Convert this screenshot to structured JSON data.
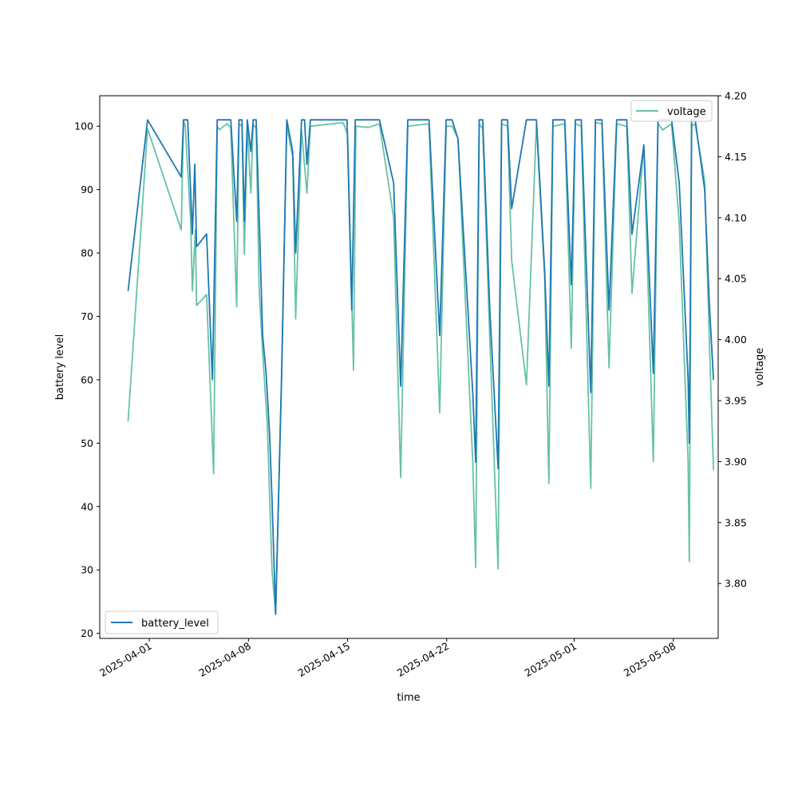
{
  "chart_data": {
    "type": "line",
    "title": "",
    "xlabel": "time",
    "ylabel": "battery level",
    "y2label": "voltage",
    "xlim": [
      "2025-03-28T12:00",
      "2025-05-11T04:00"
    ],
    "ylim": [
      19.2,
      104.8
    ],
    "y2lim": [
      3.755,
      4.2
    ],
    "x_tick_labels": [
      "2025-04-01",
      "2025-04-08",
      "2025-04-15",
      "2025-04-22",
      "2025-05-01",
      "2025-05-08"
    ],
    "y_tick_labels": [
      "20",
      "30",
      "40",
      "50",
      "60",
      "70",
      "80",
      "90",
      "100"
    ],
    "y2_tick_labels": [
      "3.80",
      "3.85",
      "3.90",
      "3.95",
      "4.00",
      "4.05",
      "4.10",
      "4.15",
      "4.20"
    ],
    "grid": false,
    "series": [
      {
        "name": "battery_level",
        "axis": "left",
        "color": "#1f77b4",
        "legend_position": "lower-left",
        "points": [
          [
            "2025-03-30T12:00",
            74
          ],
          [
            "2025-03-31T21:00",
            101
          ],
          [
            "2025-04-03T06:00",
            92
          ],
          [
            "2025-04-03T10:00",
            101
          ],
          [
            "2025-04-03T17:00",
            101
          ],
          [
            "2025-04-04T01:00",
            83
          ],
          [
            "2025-04-04T05:00",
            94
          ],
          [
            "2025-04-04T08:00",
            81
          ],
          [
            "2025-04-05T01:00",
            83
          ],
          [
            "2025-04-05T11:00",
            60
          ],
          [
            "2025-04-05T19:00",
            101
          ],
          [
            "2025-04-06T18:00",
            101
          ],
          [
            "2025-04-07T04:00",
            85
          ],
          [
            "2025-04-07T08:00",
            101
          ],
          [
            "2025-04-07T13:00",
            101
          ],
          [
            "2025-04-07T17:00",
            85
          ],
          [
            "2025-04-07T22:00",
            101
          ],
          [
            "2025-04-08T04:00",
            96
          ],
          [
            "2025-04-08T08:00",
            101
          ],
          [
            "2025-04-08T13:00",
            101
          ],
          [
            "2025-04-08T18:00",
            86
          ],
          [
            "2025-04-09T00:00",
            67
          ],
          [
            "2025-04-09T06:00",
            61
          ],
          [
            "2025-04-09T12:00",
            51
          ],
          [
            "2025-04-09T16:00",
            41
          ],
          [
            "2025-04-09T22:00",
            23
          ],
          [
            "2025-04-10T08:00",
            60
          ],
          [
            "2025-04-10T17:00",
            101
          ],
          [
            "2025-04-11T03:00",
            96
          ],
          [
            "2025-04-11T08:00",
            80
          ],
          [
            "2025-04-11T18:00",
            101
          ],
          [
            "2025-04-11T23:00",
            101
          ],
          [
            "2025-04-12T03:00",
            94
          ],
          [
            "2025-04-12T09:00",
            101
          ],
          [
            "2025-04-14T19:00",
            101
          ],
          [
            "2025-04-14T23:00",
            101
          ],
          [
            "2025-04-15T07:00",
            71
          ],
          [
            "2025-04-15T13:00",
            101
          ],
          [
            "2025-04-17T06:00",
            101
          ],
          [
            "2025-04-18T06:00",
            91
          ],
          [
            "2025-04-18T18:00",
            59
          ],
          [
            "2025-04-19T06:00",
            101
          ],
          [
            "2025-04-20T18:00",
            101
          ],
          [
            "2025-04-21T12:00",
            67
          ],
          [
            "2025-04-21T23:00",
            101
          ],
          [
            "2025-04-22T09:00",
            101
          ],
          [
            "2025-04-22T19:00",
            98
          ],
          [
            "2025-04-23T20:00",
            58
          ],
          [
            "2025-04-24T01:00",
            47
          ],
          [
            "2025-04-24T07:00",
            101
          ],
          [
            "2025-04-24T13:00",
            101
          ],
          [
            "2025-04-25T01:00",
            71
          ],
          [
            "2025-04-25T15:00",
            46
          ],
          [
            "2025-04-25T21:00",
            101
          ],
          [
            "2025-04-26T07:00",
            101
          ],
          [
            "2025-04-26T14:00",
            87
          ],
          [
            "2025-04-27T15:00",
            101
          ],
          [
            "2025-04-28T08:00",
            101
          ],
          [
            "2025-04-28T22:00",
            77
          ],
          [
            "2025-04-29T05:00",
            59
          ],
          [
            "2025-04-29T12:00",
            101
          ],
          [
            "2025-04-30T08:00",
            101
          ],
          [
            "2025-04-30T19:00",
            75
          ],
          [
            "2025-05-01T02:00",
            101
          ],
          [
            "2025-05-01T12:00",
            101
          ],
          [
            "2025-05-02T04:00",
            58
          ],
          [
            "2025-05-02T12:00",
            101
          ],
          [
            "2025-05-02T23:00",
            101
          ],
          [
            "2025-05-03T11:00",
            71
          ],
          [
            "2025-05-04T00:00",
            101
          ],
          [
            "2025-05-04T17:00",
            101
          ],
          [
            "2025-05-05T02:00",
            83
          ],
          [
            "2025-05-05T22:00",
            97
          ],
          [
            "2025-05-06T14:00",
            61
          ],
          [
            "2025-05-06T22:00",
            101
          ],
          [
            "2025-05-07T21:00",
            101
          ],
          [
            "2025-05-08T10:00",
            91
          ],
          [
            "2025-05-09T01:00",
            60
          ],
          [
            "2025-05-09T03:00",
            50
          ],
          [
            "2025-05-09T07:00",
            101
          ],
          [
            "2025-05-09T13:00",
            101
          ],
          [
            "2025-05-10T05:00",
            90
          ],
          [
            "2025-05-10T13:00",
            72
          ],
          [
            "2025-05-10T20:00",
            60
          ]
        ]
      },
      {
        "name": "voltage",
        "axis": "right",
        "color": "#66c2a5",
        "legend_position": "upper-right",
        "points": [
          [
            "2025-03-30T12:00",
            3.933
          ],
          [
            "2025-03-31T21:00",
            4.173
          ],
          [
            "2025-04-03T06:00",
            4.09
          ],
          [
            "2025-04-03T10:00",
            4.18
          ],
          [
            "2025-04-03T13:00",
            4.175
          ],
          [
            "2025-04-03T22:00",
            4.097
          ],
          [
            "2025-04-04T01:00",
            4.04
          ],
          [
            "2025-04-04T06:00",
            4.09
          ],
          [
            "2025-04-04T08:00",
            4.028
          ],
          [
            "2025-04-05T01:00",
            4.037
          ],
          [
            "2025-04-05T13:00",
            3.89
          ],
          [
            "2025-04-05T19:00",
            4.175
          ],
          [
            "2025-04-05T23:00",
            4.172
          ],
          [
            "2025-04-06T06:00",
            4.175
          ],
          [
            "2025-04-06T12:00",
            4.177
          ],
          [
            "2025-04-06T18:00",
            4.174
          ],
          [
            "2025-04-07T04:00",
            4.027
          ],
          [
            "2025-04-07T08:00",
            4.177
          ],
          [
            "2025-04-07T13:00",
            4.175
          ],
          [
            "2025-04-07T17:00",
            4.07
          ],
          [
            "2025-04-07T22:00",
            4.175
          ],
          [
            "2025-04-08T04:00",
            4.12
          ],
          [
            "2025-04-08T08:00",
            4.177
          ],
          [
            "2025-04-08T13:00",
            4.173
          ],
          [
            "2025-04-08T18:00",
            4.042
          ],
          [
            "2025-04-09T00:00",
            3.99
          ],
          [
            "2025-04-09T08:00",
            3.93
          ],
          [
            "2025-04-09T16:00",
            3.81
          ],
          [
            "2025-04-09T22:00",
            3.775
          ],
          [
            "2025-04-10T08:00",
            3.97
          ],
          [
            "2025-04-10T17:00",
            4.175
          ],
          [
            "2025-04-11T03:00",
            4.15
          ],
          [
            "2025-04-11T08:00",
            4.017
          ],
          [
            "2025-04-11T18:00",
            4.172
          ],
          [
            "2025-04-12T03:00",
            4.12
          ],
          [
            "2025-04-12T09:00",
            4.175
          ],
          [
            "2025-04-14T16:00",
            4.178
          ],
          [
            "2025-04-14T19:00",
            4.175
          ],
          [
            "2025-04-15T00:00",
            4.168
          ],
          [
            "2025-04-15T10:00",
            3.975
          ],
          [
            "2025-04-15T14:00",
            4.175
          ],
          [
            "2025-04-16T12:00",
            4.174
          ],
          [
            "2025-04-17T06:00",
            4.177
          ],
          [
            "2025-04-18T06:00",
            4.1
          ],
          [
            "2025-04-18T18:00",
            3.887
          ],
          [
            "2025-04-19T06:00",
            4.175
          ],
          [
            "2025-04-20T18:00",
            4.177
          ],
          [
            "2025-04-21T12:00",
            3.94
          ],
          [
            "2025-04-21T23:00",
            4.175
          ],
          [
            "2025-04-22T09:00",
            4.175
          ],
          [
            "2025-04-22T19:00",
            4.165
          ],
          [
            "2025-04-23T20:00",
            3.9
          ],
          [
            "2025-04-24T01:00",
            3.813
          ],
          [
            "2025-04-24T07:00",
            4.177
          ],
          [
            "2025-04-24T13:00",
            4.173
          ],
          [
            "2025-04-25T01:00",
            4.0
          ],
          [
            "2025-04-25T15:00",
            3.812
          ],
          [
            "2025-04-25T21:00",
            4.177
          ],
          [
            "2025-04-26T07:00",
            4.175
          ],
          [
            "2025-04-26T14:00",
            4.065
          ],
          [
            "2025-04-27T15:00",
            3.963
          ],
          [
            "2025-04-28T08:00",
            4.177
          ],
          [
            "2025-04-28T22:00",
            4.05
          ],
          [
            "2025-04-29T05:00",
            3.882
          ],
          [
            "2025-04-29T12:00",
            4.175
          ],
          [
            "2025-04-30T08:00",
            4.177
          ],
          [
            "2025-04-30T19:00",
            3.993
          ],
          [
            "2025-05-01T02:00",
            4.177
          ],
          [
            "2025-05-01T12:00",
            4.175
          ],
          [
            "2025-05-02T04:00",
            3.878
          ],
          [
            "2025-05-02T12:00",
            4.178
          ],
          [
            "2025-05-02T23:00",
            4.177
          ],
          [
            "2025-05-03T11:00",
            3.977
          ],
          [
            "2025-05-04T00:00",
            4.177
          ],
          [
            "2025-05-04T17:00",
            4.175
          ],
          [
            "2025-05-05T02:00",
            4.038
          ],
          [
            "2025-05-05T22:00",
            4.16
          ],
          [
            "2025-05-06T14:00",
            3.9
          ],
          [
            "2025-05-06T22:00",
            4.177
          ],
          [
            "2025-05-07T06:00",
            4.172
          ],
          [
            "2025-05-07T21:00",
            4.177
          ],
          [
            "2025-05-08T10:00",
            4.095
          ],
          [
            "2025-05-09T01:00",
            3.9
          ],
          [
            "2025-05-09T03:00",
            3.818
          ],
          [
            "2025-05-09T07:00",
            4.175
          ],
          [
            "2025-05-09T13:00",
            4.177
          ],
          [
            "2025-05-10T05:00",
            4.13
          ],
          [
            "2025-05-10T13:00",
            4.0
          ],
          [
            "2025-05-10T20:00",
            3.893
          ]
        ]
      }
    ]
  }
}
